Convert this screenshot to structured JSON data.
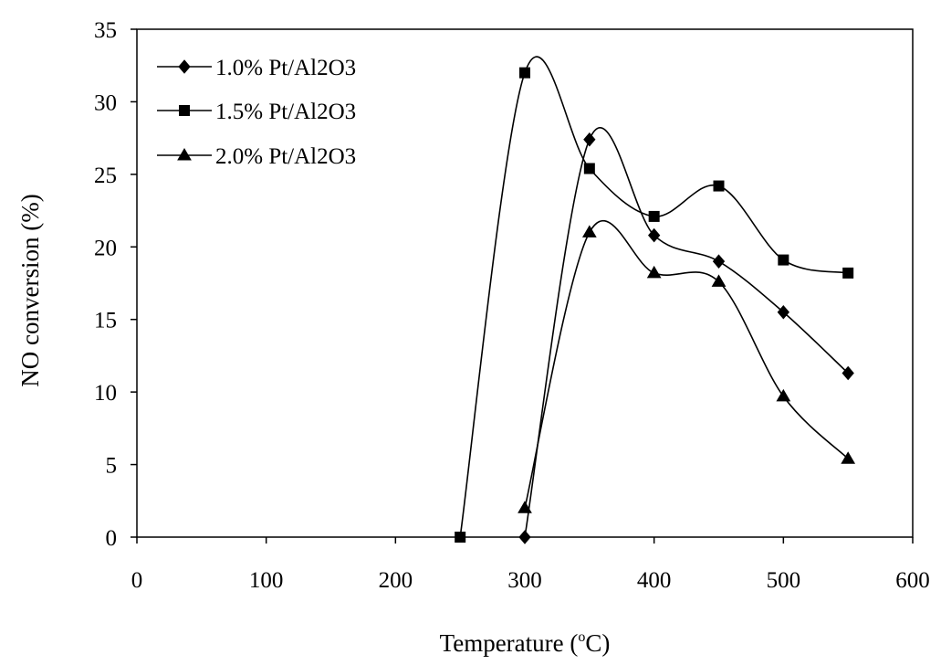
{
  "chart_data": {
    "type": "line",
    "smooth": true,
    "title": "",
    "xlabel": "Temperature (°C)",
    "xlabel_parts": [
      "Temperature (",
      "o",
      "C)"
    ],
    "ylabel": "NO conversion (%)",
    "xlim": [
      0,
      600
    ],
    "ylim": [
      0,
      35
    ],
    "xticks": [
      0,
      100,
      200,
      300,
      400,
      500,
      600
    ],
    "yticks": [
      0,
      5,
      10,
      15,
      20,
      25,
      30,
      35
    ],
    "grid": false,
    "legend_position": "top-left",
    "series": [
      {
        "name": "1.0% Pt/Al2O3",
        "marker": "diamond",
        "x": [
          300,
          350,
          400,
          450,
          500,
          550
        ],
        "y": [
          0,
          27.4,
          20.8,
          19.0,
          15.5,
          11.3
        ]
      },
      {
        "name": "1.5% Pt/Al2O3",
        "marker": "square",
        "x": [
          250,
          300,
          350,
          400,
          450,
          500,
          550
        ],
        "y": [
          0,
          32.0,
          25.4,
          22.1,
          24.2,
          19.1,
          18.2
        ]
      },
      {
        "name": "2.0% Pt/Al2O3",
        "marker": "triangle",
        "x": [
          300,
          350,
          400,
          450,
          500,
          550
        ],
        "y": [
          2.0,
          21.0,
          18.2,
          17.6,
          9.7,
          5.4
        ]
      }
    ]
  }
}
